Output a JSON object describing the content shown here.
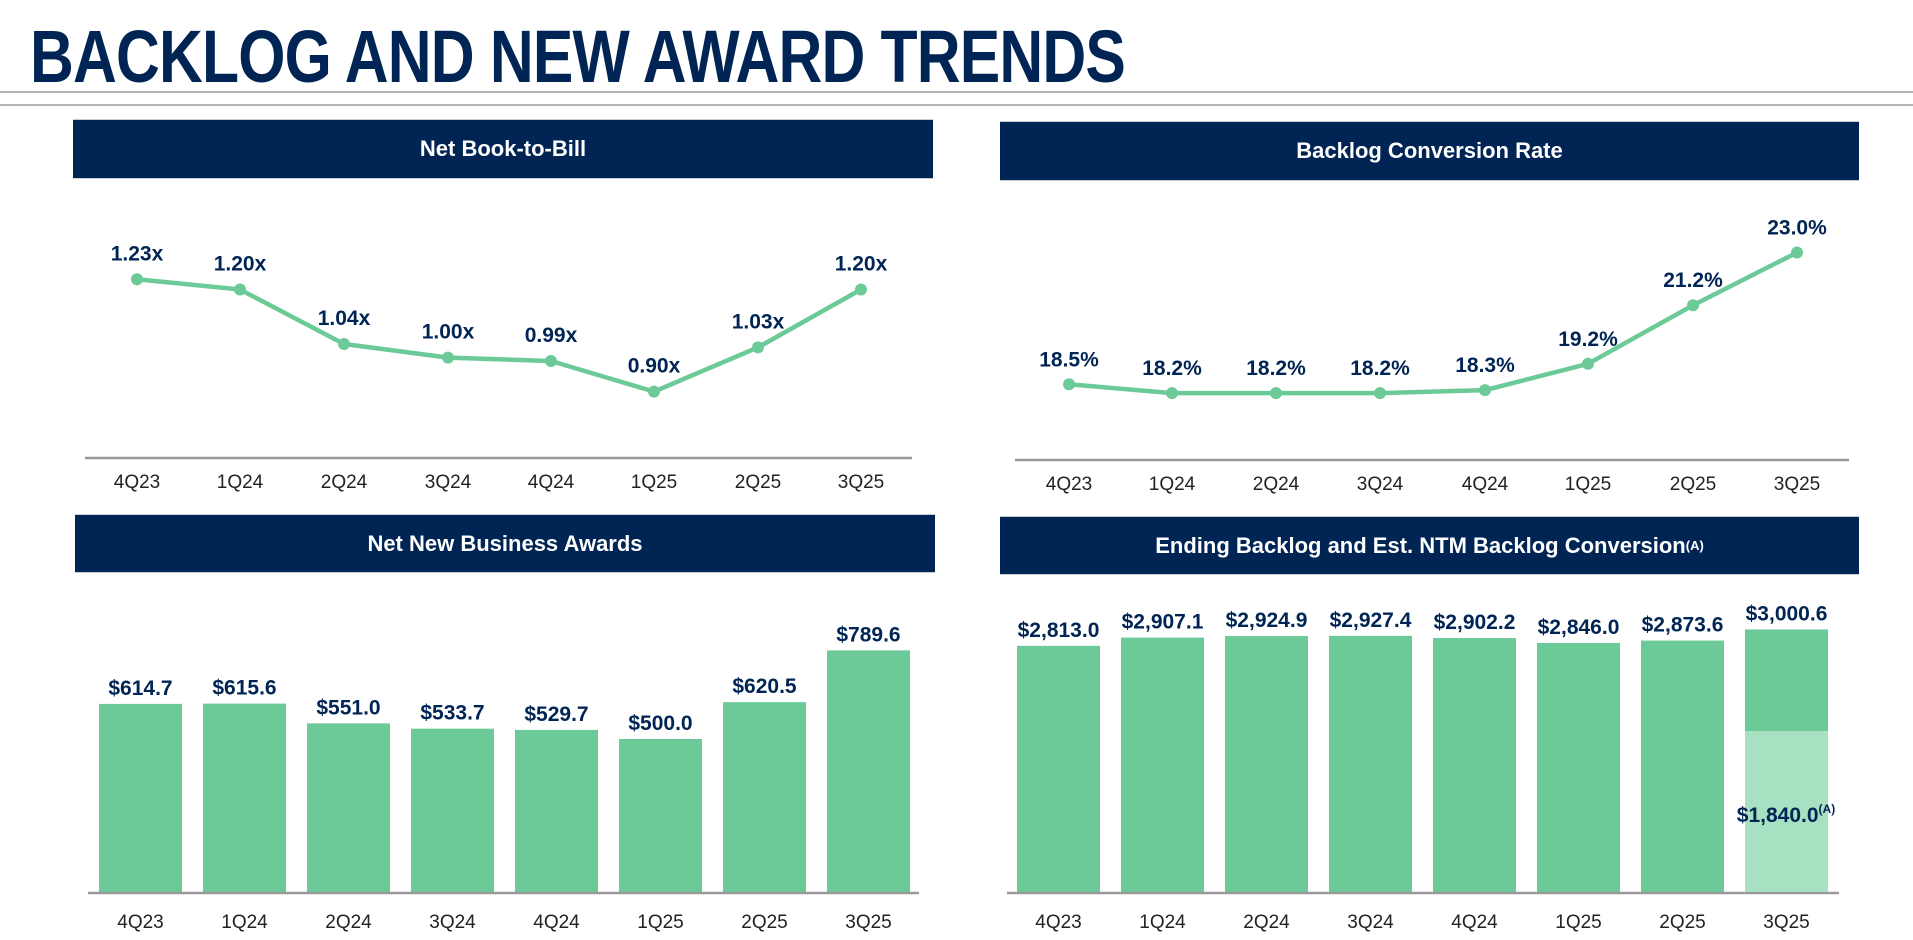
{
  "title": "BACKLOG AND NEW AWARD TRENDS",
  "colors": {
    "navy": "#002554",
    "green": "#6CCA98",
    "light_green": "#A8E0C2",
    "axis": "#999999"
  },
  "chart_data": [
    {
      "type": "line",
      "title": "Net Book-to-Bill",
      "categories": [
        "4Q23",
        "1Q24",
        "2Q24",
        "3Q24",
        "4Q24",
        "1Q25",
        "2Q25",
        "3Q25"
      ],
      "values": [
        1.23,
        1.2,
        1.04,
        1.0,
        0.99,
        0.9,
        1.03,
        1.2
      ],
      "labels": [
        "1.23x",
        "1.20x",
        "1.04x",
        "1.00x",
        "0.99x",
        "0.90x",
        "1.03x",
        "1.20x"
      ],
      "grid": false
    },
    {
      "type": "line",
      "title": "Backlog Conversion Rate",
      "categories": [
        "4Q23",
        "1Q24",
        "2Q24",
        "3Q24",
        "4Q24",
        "1Q25",
        "2Q25",
        "3Q25"
      ],
      "values": [
        18.5,
        18.2,
        18.2,
        18.2,
        18.3,
        19.2,
        21.2,
        23.0
      ],
      "labels": [
        "18.5%",
        "18.2%",
        "18.2%",
        "18.2%",
        "18.3%",
        "19.2%",
        "21.2%",
        "23.0%"
      ],
      "grid": false
    },
    {
      "type": "bar",
      "title": "Net New Business Awards",
      "categories": [
        "4Q23",
        "1Q24",
        "2Q24",
        "3Q24",
        "4Q24",
        "1Q25",
        "2Q25",
        "3Q25"
      ],
      "values": [
        614.7,
        615.6,
        551.0,
        533.7,
        529.7,
        500.0,
        620.5,
        789.6
      ],
      "labels": [
        "$614.7",
        "$615.6",
        "$551.0",
        "$533.7",
        "$529.7",
        "$500.0",
        "$620.5",
        "$789.6"
      ],
      "grid": false
    },
    {
      "type": "bar",
      "title": "Ending Backlog and Est. NTM Backlog Conversion",
      "title_sup": "(A)",
      "categories": [
        "4Q23",
        "1Q24",
        "2Q24",
        "3Q24",
        "4Q24",
        "1Q25",
        "2Q25",
        "3Q25"
      ],
      "values": [
        2813.0,
        2907.1,
        2924.9,
        2927.4,
        2902.2,
        2846.0,
        2873.6,
        3000.6
      ],
      "labels": [
        "$2,813.0",
        "$2,907.1",
        "$2,924.9",
        "$2,927.4",
        "$2,902.2",
        "$2,846.0",
        "$2,873.6",
        "$3,000.6"
      ],
      "ntm_conversion": {
        "category": "3Q25",
        "value": 1840.0,
        "label": "$1,840.0",
        "sup": "(A)"
      },
      "grid": false
    }
  ]
}
